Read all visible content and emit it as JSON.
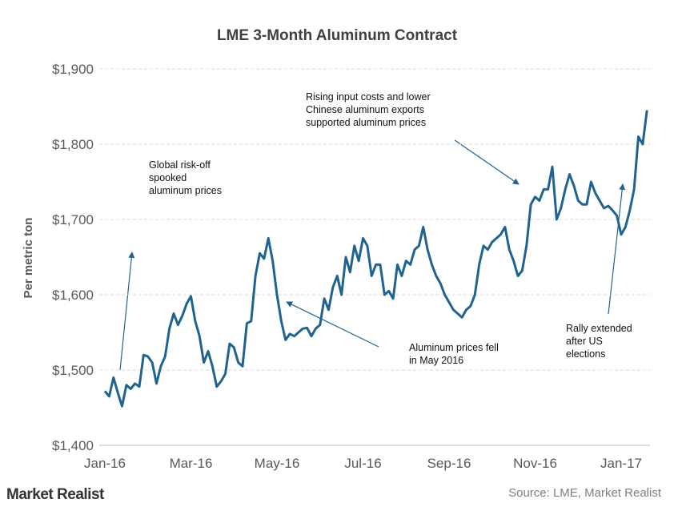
{
  "chart_data": {
    "type": "line",
    "title": "LME 3-Month Aluminum Contract",
    "y_label": "Per metric ton",
    "source": "Source: LME, Market Realist",
    "logo": "Market Realist",
    "categories": [
      "Jan-16",
      null,
      null,
      null,
      null,
      null,
      null,
      null,
      null,
      null,
      null,
      null,
      null,
      null,
      null,
      null,
      null,
      null,
      null,
      null,
      "Mar-16",
      null,
      null,
      null,
      null,
      null,
      null,
      null,
      null,
      null,
      null,
      null,
      null,
      null,
      null,
      null,
      null,
      null,
      null,
      null,
      "May-16",
      null,
      null,
      null,
      null,
      null,
      null,
      null,
      null,
      null,
      null,
      null,
      null,
      null,
      null,
      null,
      null,
      null,
      null,
      null,
      "Jul-16",
      null,
      null,
      null,
      null,
      null,
      null,
      null,
      null,
      null,
      null,
      null,
      null,
      null,
      null,
      null,
      null,
      null,
      null,
      null,
      "Sep-16",
      null,
      null,
      null,
      null,
      null,
      null,
      null,
      null,
      null,
      null,
      null,
      null,
      null,
      null,
      null,
      null,
      null,
      null,
      null,
      "Nov-16",
      null,
      null,
      null,
      null,
      null,
      null,
      null,
      null,
      null,
      null,
      null,
      null,
      null,
      null,
      null,
      null,
      null,
      null,
      null,
      "Jan-17",
      null,
      null,
      null,
      null,
      null,
      null
    ],
    "series": [
      {
        "name": "LME 3-Month Aluminum",
        "color": "#1f6391",
        "values": [
          1472,
          1465,
          1490,
          1470,
          1452,
          1480,
          1475,
          1482,
          1478,
          1520,
          1518,
          1510,
          1482,
          1505,
          1518,
          1555,
          1575,
          1560,
          1572,
          1588,
          1598,
          1565,
          1545,
          1510,
          1525,
          1505,
          1478,
          1485,
          1495,
          1535,
          1530,
          1510,
          1505,
          1562,
          1565,
          1625,
          1655,
          1648,
          1675,
          1645,
          1600,
          1565,
          1540,
          1548,
          1545,
          1550,
          1555,
          1556,
          1545,
          1555,
          1560,
          1595,
          1580,
          1610,
          1625,
          1600,
          1650,
          1630,
          1665,
          1645,
          1675,
          1665,
          1625,
          1640,
          1640,
          1600,
          1605,
          1595,
          1640,
          1625,
          1645,
          1640,
          1660,
          1665,
          1690,
          1660,
          1640,
          1625,
          1615,
          1600,
          1590,
          1580,
          1575,
          1570,
          1580,
          1585,
          1600,
          1640,
          1665,
          1660,
          1670,
          1675,
          1680,
          1690,
          1660,
          1645,
          1625,
          1632,
          1665,
          1720,
          1730,
          1725,
          1740,
          1740,
          1770,
          1700,
          1715,
          1740,
          1760,
          1745,
          1725,
          1720,
          1720,
          1750,
          1735,
          1725,
          1715,
          1718,
          1712,
          1705,
          1680,
          1690,
          1712,
          1740,
          1810,
          1800,
          1845
        ]
      }
    ],
    "ylim": [
      1400,
      1900
    ],
    "yticks": [
      {
        "value": 1400,
        "label": "$1,400"
      },
      {
        "value": 1500,
        "label": "$1,500"
      },
      {
        "value": 1600,
        "label": "$1,600"
      },
      {
        "value": 1700,
        "label": "$1,700"
      },
      {
        "value": 1800,
        "label": "$1,800"
      },
      {
        "value": 1900,
        "label": "$1,900"
      }
    ],
    "grid": true,
    "annotations": [
      {
        "lines": [
          "Global risk-off",
          "spooked",
          "aluminum prices"
        ]
      },
      {
        "lines": [
          "Rising input costs and lower",
          "Chinese aluminum exports",
          "supported aluminum prices"
        ]
      },
      {
        "lines": [
          "Aluminum prices fell",
          "in May 2016"
        ]
      },
      {
        "lines": [
          "Rally extended",
          "after US",
          "elections"
        ]
      }
    ]
  }
}
